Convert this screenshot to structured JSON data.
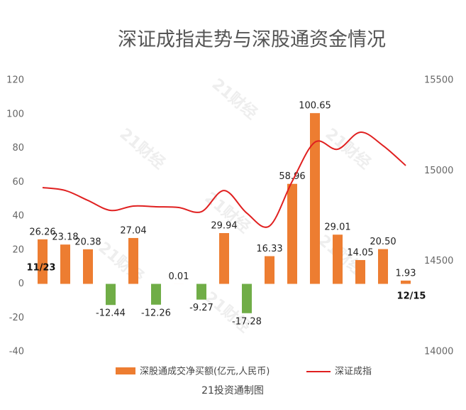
{
  "chart_data": {
    "type": "bar_line",
    "title": "深证成指走势与深股通资金情况",
    "source": "21投资通制图",
    "watermark": "21财经",
    "annotations": [
      "11/23",
      "12/15"
    ],
    "categories": [
      null,
      null,
      null,
      null,
      null,
      null,
      null,
      null,
      null,
      null,
      null,
      null,
      null,
      null,
      null,
      null,
      null
    ],
    "series": [
      {
        "name": "深股通成交净买额(亿元,人民币)",
        "type": "bar",
        "color": "#ed7d31",
        "negative_color": "#70ad47",
        "values": [
          26.26,
          23.18,
          20.38,
          -12.44,
          27.04,
          -12.26,
          0.01,
          -9.27,
          29.94,
          -17.28,
          16.33,
          58.96,
          100.65,
          29.01,
          14.05,
          20.5,
          1.93
        ],
        "value_labels": [
          "26.26",
          "23.18",
          "20.38",
          "-12.44",
          "27.04",
          "-12.26",
          "0.01",
          "-9.27",
          "29.94",
          "-17.28",
          "16.33",
          "58.96",
          "100.65",
          "29.01",
          "14.05",
          "20.50",
          "1.93"
        ]
      },
      {
        "name": "深证成指",
        "type": "line",
        "axis": "y2",
        "color": "#e02020",
        "values": [
          14907,
          14891,
          14836,
          14781,
          14805,
          14801,
          14797,
          14774,
          14891,
          14766,
          14695,
          14942,
          15158,
          15119,
          15213,
          15139,
          15029
        ]
      }
    ],
    "ylim": [
      -40,
      120
    ],
    "yticks": [
      -40,
      -20,
      0,
      20,
      40,
      60,
      80,
      100,
      120
    ],
    "y2lim": [
      14000,
      15500
    ],
    "y2ticks": [
      14000,
      14500,
      15000,
      15500
    ],
    "legend": "bottom"
  }
}
